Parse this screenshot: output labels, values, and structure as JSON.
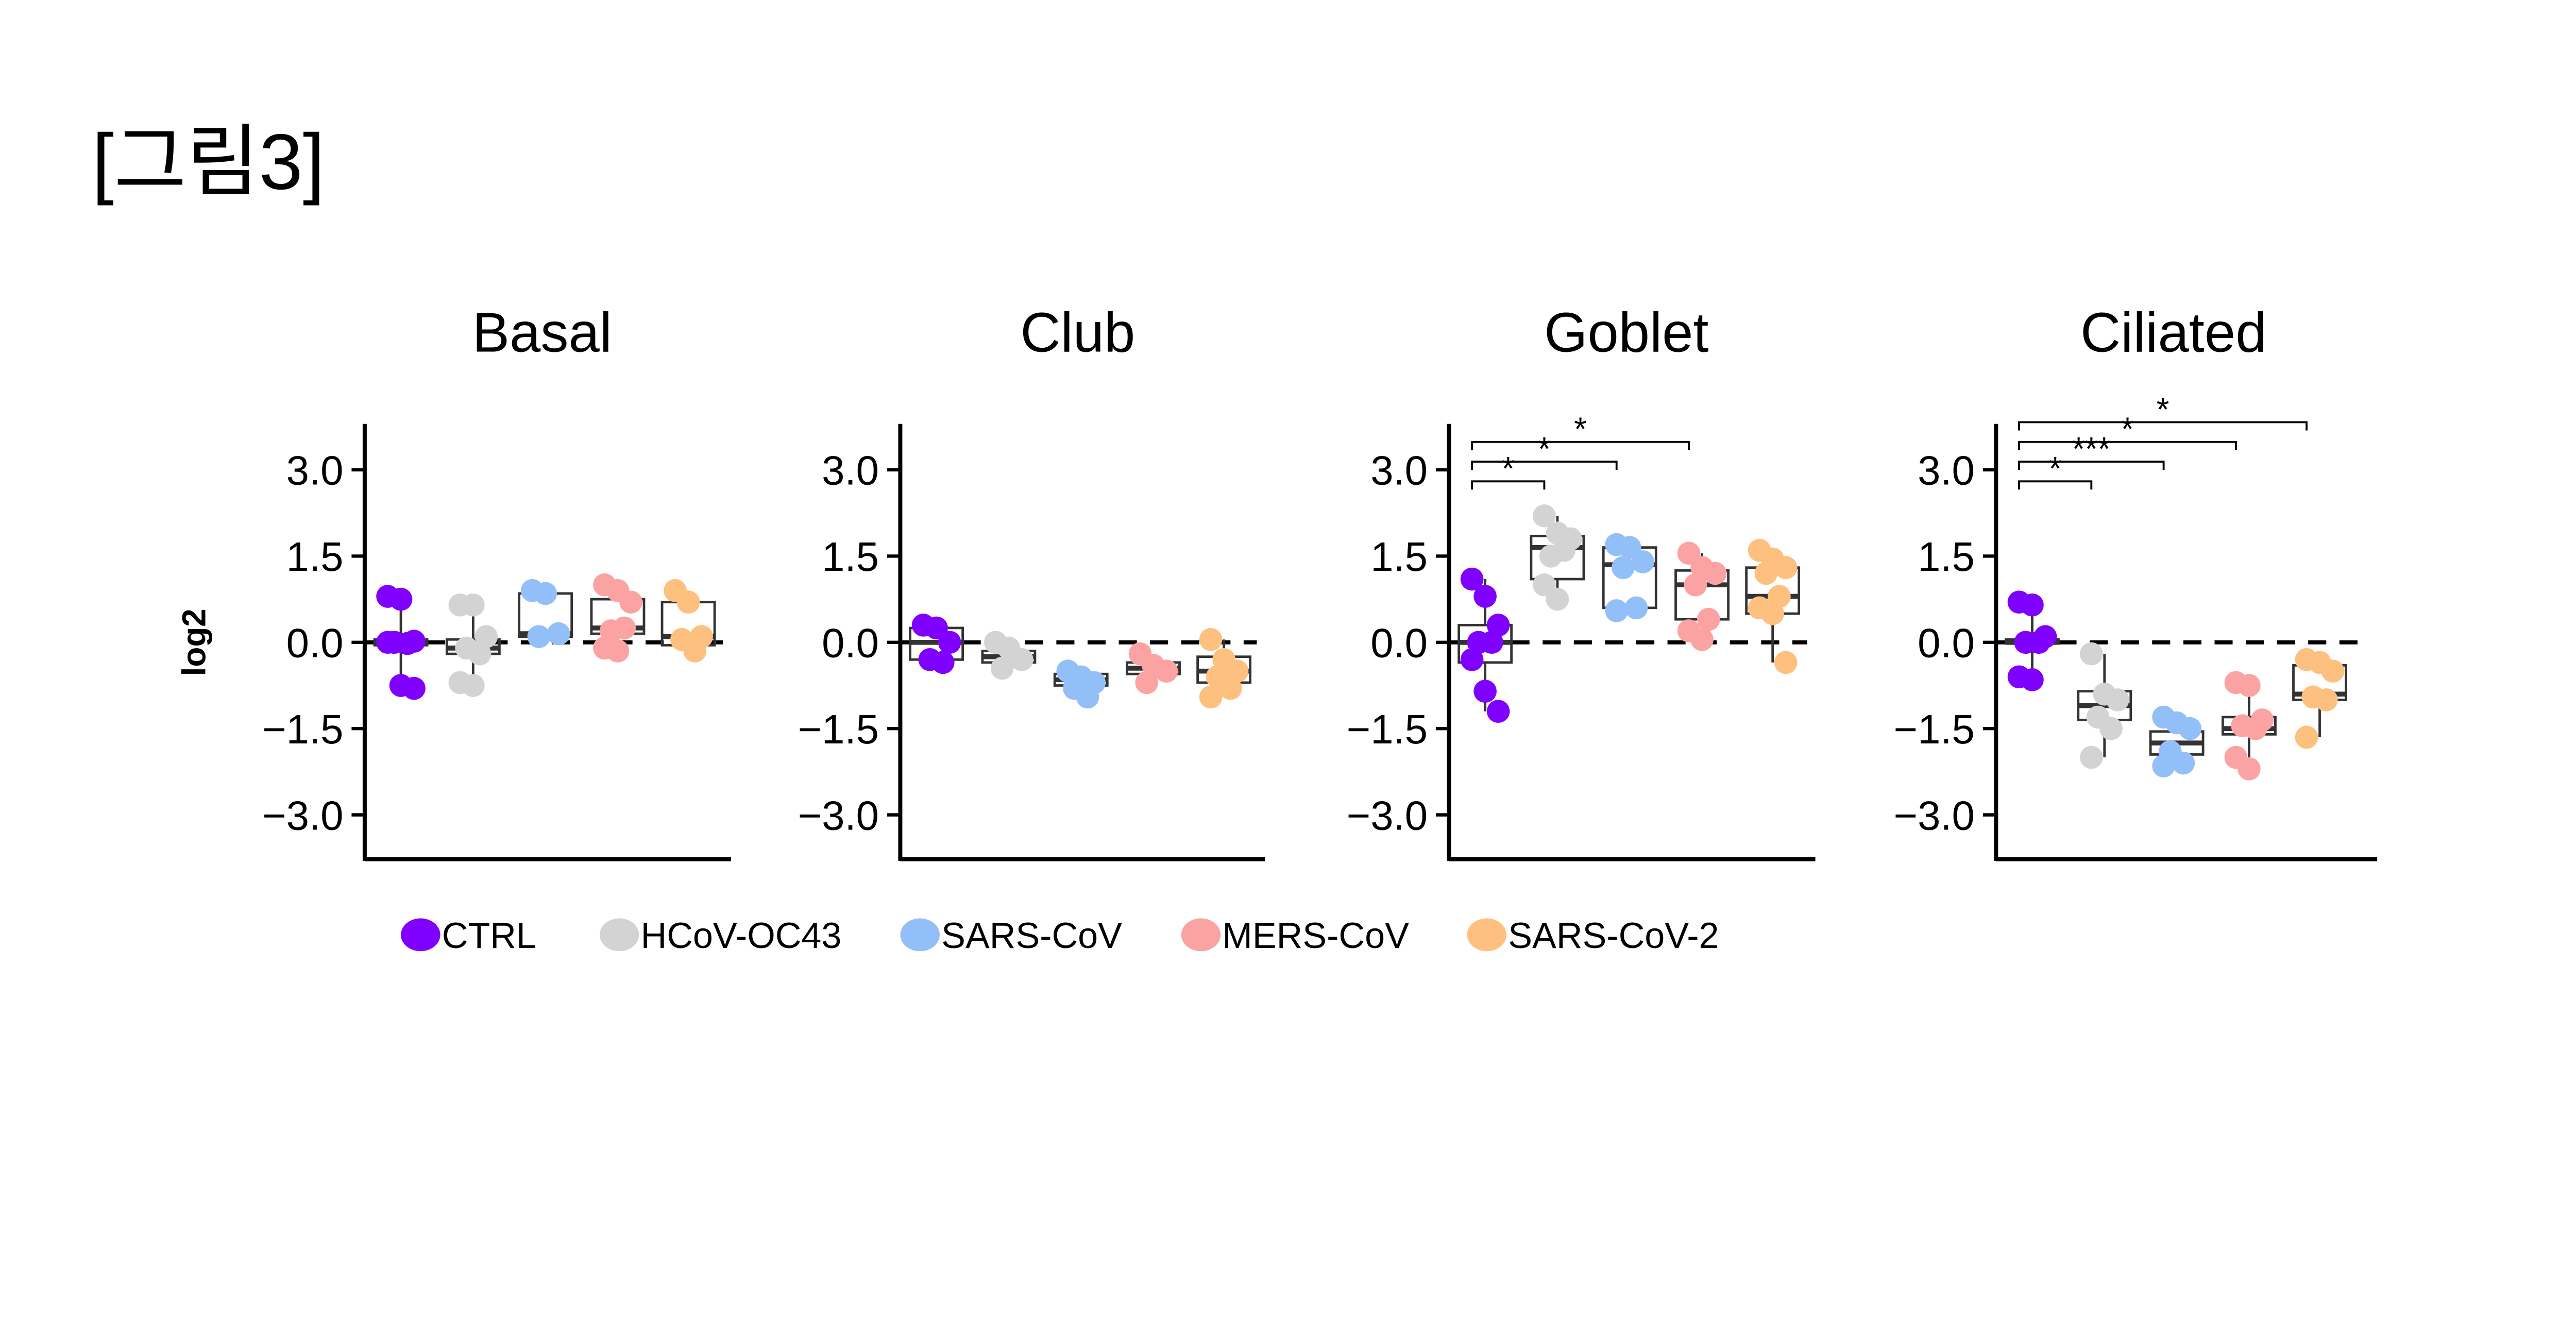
{
  "figure_title": "[그림3]",
  "colors": {
    "CTRL": "#8000ff",
    "HCoV-OC43": "#d3d3d3",
    "SARS-CoV": "#93bff8",
    "MERS-CoV": "#fba3a3",
    "SARS-CoV-2": "#fec07f"
  },
  "legend": [
    "CTRL",
    "HCoV-OC43",
    "SARS-CoV",
    "MERS-CoV",
    "SARS-CoV-2"
  ],
  "chart_data": [
    {
      "type": "box+jitter",
      "title": "Basal",
      "ylabel": "log2",
      "ylim": [
        -3.9,
        3.8
      ],
      "yticks": [
        "3.0",
        "1.5",
        "0.0",
        "−1.5",
        "−3.0"
      ],
      "reference_line": 0,
      "groups": [
        {
          "name": "CTRL",
          "points": [
            0.8,
            0.75,
            0.02,
            0,
            -0.02,
            0,
            -0.75,
            -0.8
          ],
          "box": [
            -0.05,
            0,
            0.05
          ]
        },
        {
          "name": "HCoV-OC43",
          "points": [
            0.65,
            0.65,
            0.1,
            -0.1,
            -0.2,
            -0.7,
            -0.75
          ],
          "box": [
            -0.2,
            -0.1,
            0.05
          ]
        },
        {
          "name": "SARS-CoV",
          "points": [
            0.9,
            0.85,
            0.15,
            0.1
          ],
          "box": [
            0.1,
            0.15,
            0.85
          ]
        },
        {
          "name": "MERS-CoV",
          "points": [
            1.0,
            0.9,
            0.7,
            0.2,
            0.25,
            -0.1,
            -0.15
          ],
          "box": [
            0.15,
            0.25,
            0.75
          ]
        },
        {
          "name": "SARS-CoV-2",
          "points": [
            0.9,
            0.7,
            0.1,
            0.05,
            -0.15
          ],
          "box": [
            -0.05,
            0.1,
            0.7
          ]
        }
      ],
      "significance": []
    },
    {
      "type": "box+jitter",
      "title": "Club",
      "ylim": [
        -3.9,
        3.8
      ],
      "yticks": [
        "3.0",
        "1.5",
        "0.0",
        "−1.5",
        "−3.0"
      ],
      "reference_line": 0,
      "groups": [
        {
          "name": "CTRL",
          "points": [
            0.3,
            0.25,
            0,
            -0.3,
            -0.35
          ],
          "box": [
            -0.3,
            0,
            0.25
          ]
        },
        {
          "name": "HCoV-OC43",
          "points": [
            0,
            -0.1,
            -0.3,
            -0.45
          ],
          "box": [
            -0.35,
            -0.25,
            -0.15
          ]
        },
        {
          "name": "SARS-CoV",
          "points": [
            -0.5,
            -0.6,
            -0.7,
            -0.8,
            -0.95
          ],
          "box": [
            -0.75,
            -0.65,
            -0.55
          ]
        },
        {
          "name": "MERS-CoV",
          "points": [
            -0.2,
            -0.4,
            -0.5,
            -0.7
          ],
          "box": [
            -0.55,
            -0.45,
            -0.35
          ]
        },
        {
          "name": "SARS-CoV-2",
          "points": [
            0.05,
            -0.3,
            -0.5,
            -0.6,
            -0.8,
            -0.95
          ],
          "box": [
            -0.7,
            -0.5,
            -0.25
          ]
        }
      ],
      "significance": []
    },
    {
      "type": "box+jitter",
      "title": "Goblet",
      "ylim": [
        -3.9,
        3.8
      ],
      "yticks": [
        "3.0",
        "1.5",
        "0.0",
        "−1.5",
        "−3.0"
      ],
      "reference_line": 0,
      "groups": [
        {
          "name": "CTRL",
          "points": [
            1.1,
            0.8,
            0.3,
            0,
            0,
            -0.3,
            -0.85,
            -1.2
          ],
          "box": [
            -0.35,
            0,
            0.3
          ]
        },
        {
          "name": "HCoV-OC43",
          "points": [
            2.2,
            1.9,
            1.8,
            1.5,
            1.6,
            1.0,
            0.75
          ],
          "box": [
            1.1,
            1.65,
            1.85
          ]
        },
        {
          "name": "SARS-CoV",
          "points": [
            1.7,
            1.65,
            1.4,
            1.3,
            0.6,
            0.55
          ],
          "box": [
            0.6,
            1.35,
            1.65
          ]
        },
        {
          "name": "MERS-CoV",
          "points": [
            1.55,
            1.3,
            1.2,
            1.0,
            0.4,
            0.2,
            0.05
          ],
          "box": [
            0.4,
            1.0,
            1.25
          ]
        },
        {
          "name": "SARS-CoV-2",
          "points": [
            1.6,
            1.45,
            1.3,
            1.2,
            0.8,
            0.6,
            0.5,
            -0.35
          ],
          "box": [
            0.5,
            0.8,
            1.3
          ]
        }
      ],
      "significance": [
        {
          "from": "CTRL",
          "to": "HCoV-OC43",
          "label": "*"
        },
        {
          "from": "CTRL",
          "to": "SARS-CoV",
          "label": "*"
        },
        {
          "from": "CTRL",
          "to": "MERS-CoV",
          "label": "*"
        }
      ]
    },
    {
      "type": "box+jitter",
      "title": "Ciliated",
      "ylim": [
        -3.9,
        3.8
      ],
      "yticks": [
        "3.0",
        "1.5",
        "0.0",
        "−1.5",
        "−3.0"
      ],
      "reference_line": 0,
      "groups": [
        {
          "name": "CTRL",
          "points": [
            0.7,
            0.65,
            0.1,
            0,
            0,
            -0.6,
            -0.65
          ],
          "box": [
            -0.02,
            0,
            0.05
          ]
        },
        {
          "name": "HCoV-OC43",
          "points": [
            -0.2,
            -0.9,
            -1.0,
            -1.3,
            -1.5,
            -2.0
          ],
          "box": [
            -1.35,
            -1.1,
            -0.85
          ]
        },
        {
          "name": "SARS-CoV",
          "points": [
            -1.3,
            -1.4,
            -1.5,
            -1.9,
            -2.1,
            -2.15
          ],
          "box": [
            -1.95,
            -1.75,
            -1.55
          ]
        },
        {
          "name": "MERS-CoV",
          "points": [
            -0.7,
            -0.75,
            -1.35,
            -1.45,
            -1.5,
            -2.0,
            -2.2
          ],
          "box": [
            -1.6,
            -1.5,
            -1.3
          ]
        },
        {
          "name": "SARS-CoV-2",
          "points": [
            -0.3,
            -0.35,
            -0.5,
            -0.95,
            -1.0,
            -1.65
          ],
          "box": [
            -1.0,
            -0.9,
            -0.4
          ]
        }
      ],
      "significance": [
        {
          "from": "CTRL",
          "to": "HCoV-OC43",
          "label": "*"
        },
        {
          "from": "CTRL",
          "to": "SARS-CoV",
          "label": "***"
        },
        {
          "from": "CTRL",
          "to": "MERS-CoV",
          "label": "*"
        },
        {
          "from": "CTRL",
          "to": "SARS-CoV-2",
          "label": "*"
        }
      ]
    }
  ]
}
